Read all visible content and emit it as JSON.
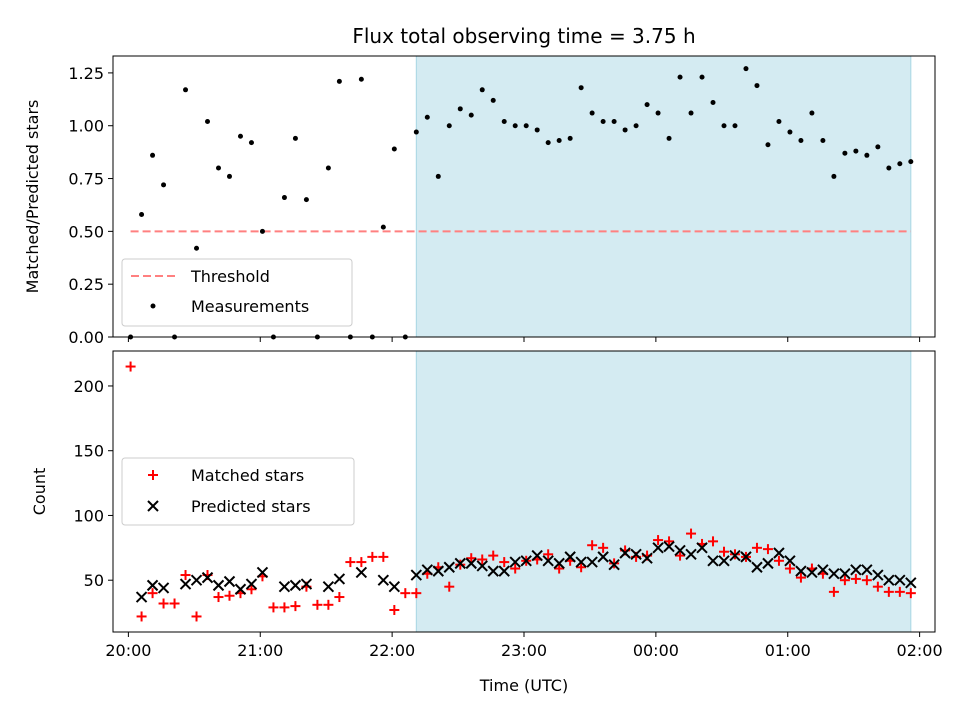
{
  "chart_data": [
    {
      "type": "scatter",
      "title": "Flux total observing time = 3.75 h",
      "ylabel": "Matched/Predicted stars",
      "xlabel": "",
      "ylim": [
        0,
        1.33
      ],
      "yticks": [
        0,
        0.25,
        0.5,
        0.75,
        1.0,
        1.25
      ],
      "ytick_labels": [
        "0.00",
        "0.25",
        "0.50",
        "0.75",
        "1.00",
        "1.25"
      ],
      "x_axis": "time",
      "xlim": [
        "19:53",
        "02:07"
      ],
      "xticks": [
        "20:00",
        "21:00",
        "22:00",
        "23:00",
        "00:00",
        "01:00",
        "02:00"
      ],
      "highlight_span": [
        "22:11",
        "01:56"
      ],
      "legend_position": "lower-left",
      "threshold": {
        "name": "Threshold",
        "value": 0.5,
        "x_range": [
          "20:01",
          "01:56"
        ],
        "color": "#ff8080",
        "style": "dashed"
      },
      "series": [
        {
          "name": "Measurements",
          "marker": "dot",
          "color": "#000000",
          "points": [
            [
              "20:01",
              0.0
            ],
            [
              "20:06",
              0.58
            ],
            [
              "20:11",
              0.86
            ],
            [
              "20:16",
              0.72
            ],
            [
              "20:21",
              0.0
            ],
            [
              "20:26",
              1.17
            ],
            [
              "20:31",
              0.42
            ],
            [
              "20:36",
              1.02
            ],
            [
              "20:41",
              0.8
            ],
            [
              "20:46",
              0.76
            ],
            [
              "20:51",
              0.95
            ],
            [
              "20:56",
              0.92
            ],
            [
              "21:01",
              0.5
            ],
            [
              "21:06",
              0.0
            ],
            [
              "21:11",
              0.66
            ],
            [
              "21:16",
              0.94
            ],
            [
              "21:21",
              0.65
            ],
            [
              "21:26",
              0.0
            ],
            [
              "21:31",
              0.8
            ],
            [
              "21:36",
              1.21
            ],
            [
              "21:41",
              0.0
            ],
            [
              "21:46",
              1.22
            ],
            [
              "21:51",
              0.0
            ],
            [
              "21:56",
              0.52
            ],
            [
              "22:01",
              0.89
            ],
            [
              "22:06",
              0.0
            ],
            [
              "22:11",
              0.97
            ],
            [
              "22:16",
              1.04
            ],
            [
              "22:21",
              0.76
            ],
            [
              "22:26",
              1.0
            ],
            [
              "22:31",
              1.08
            ],
            [
              "22:36",
              1.05
            ],
            [
              "22:41",
              1.17
            ],
            [
              "22:46",
              1.12
            ],
            [
              "22:51",
              1.02
            ],
            [
              "22:56",
              1.0
            ],
            [
              "23:01",
              1.0
            ],
            [
              "23:06",
              0.98
            ],
            [
              "23:11",
              0.92
            ],
            [
              "23:16",
              0.93
            ],
            [
              "23:21",
              0.94
            ],
            [
              "23:26",
              1.18
            ],
            [
              "23:31",
              1.06
            ],
            [
              "23:36",
              1.02
            ],
            [
              "23:41",
              1.02
            ],
            [
              "23:46",
              0.98
            ],
            [
              "23:51",
              1.0
            ],
            [
              "23:56",
              1.1
            ],
            [
              "00:01",
              1.06
            ],
            [
              "00:06",
              0.94
            ],
            [
              "00:11",
              1.23
            ],
            [
              "00:16",
              1.06
            ],
            [
              "00:21",
              1.23
            ],
            [
              "00:26",
              1.11
            ],
            [
              "00:31",
              1.0
            ],
            [
              "00:36",
              1.0
            ],
            [
              "00:41",
              1.27
            ],
            [
              "00:46",
              1.19
            ],
            [
              "00:51",
              0.91
            ],
            [
              "00:56",
              1.02
            ],
            [
              "01:01",
              0.97
            ],
            [
              "01:06",
              0.93
            ],
            [
              "01:11",
              1.06
            ],
            [
              "01:16",
              0.93
            ],
            [
              "01:21",
              0.76
            ],
            [
              "01:26",
              0.87
            ],
            [
              "01:31",
              0.88
            ],
            [
              "01:36",
              0.86
            ],
            [
              "01:41",
              0.9
            ],
            [
              "01:46",
              0.8
            ],
            [
              "01:51",
              0.82
            ],
            [
              "01:56",
              0.83
            ]
          ]
        }
      ]
    },
    {
      "type": "scatter",
      "title": "",
      "ylabel": "Count",
      "xlabel": "Time (UTC)",
      "ylim": [
        10,
        227
      ],
      "yticks": [
        50,
        100,
        150,
        200
      ],
      "ytick_labels": [
        "50",
        "100",
        "150",
        "200"
      ],
      "x_axis": "time",
      "xlim": [
        "19:53",
        "02:07"
      ],
      "xticks": [
        "20:00",
        "21:00",
        "22:00",
        "23:00",
        "00:00",
        "01:00",
        "02:00"
      ],
      "xtick_labels": [
        "20:00",
        "21:00",
        "22:00",
        "23:00",
        "00:00",
        "01:00",
        "02:00"
      ],
      "highlight_span": [
        "22:11",
        "01:56"
      ],
      "legend_position": "center-left",
      "series": [
        {
          "name": "Matched stars",
          "marker": "plus",
          "color": "#ff0000",
          "points": [
            [
              "20:01",
              215
            ],
            [
              "20:06",
              22
            ],
            [
              "20:11",
              40
            ],
            [
              "20:16",
              32
            ],
            [
              "20:21",
              32
            ],
            [
              "20:26",
              54
            ],
            [
              "20:31",
              22
            ],
            [
              "20:36",
              54
            ],
            [
              "20:41",
              37
            ],
            [
              "20:46",
              38
            ],
            [
              "20:51",
              40
            ],
            [
              "20:56",
              43
            ],
            [
              "21:01",
              53
            ],
            [
              "21:06",
              29
            ],
            [
              "21:11",
              29
            ],
            [
              "21:16",
              30
            ],
            [
              "21:21",
              45
            ],
            [
              "21:26",
              31
            ],
            [
              "21:31",
              31
            ],
            [
              "21:36",
              37
            ],
            [
              "21:41",
              64
            ],
            [
              "21:46",
              64
            ],
            [
              "21:51",
              68
            ],
            [
              "21:56",
              68
            ],
            [
              "22:01",
              27
            ],
            [
              "22:06",
              40
            ],
            [
              "22:11",
              40
            ],
            [
              "22:16",
              55
            ],
            [
              "22:21",
              60
            ],
            [
              "22:26",
              45
            ],
            [
              "22:31",
              62
            ],
            [
              "22:36",
              67
            ],
            [
              "22:41",
              66
            ],
            [
              "22:46",
              69
            ],
            [
              "22:51",
              64
            ],
            [
              "22:56",
              59
            ],
            [
              "23:01",
              65
            ],
            [
              "23:06",
              66
            ],
            [
              "23:11",
              70
            ],
            [
              "23:16",
              59
            ],
            [
              "23:21",
              65
            ],
            [
              "23:26",
              60
            ],
            [
              "23:31",
              77
            ],
            [
              "23:36",
              75
            ],
            [
              "23:41",
              63
            ],
            [
              "23:46",
              73
            ],
            [
              "23:51",
              68
            ],
            [
              "23:56",
              69
            ],
            [
              "00:01",
              81
            ],
            [
              "00:06",
              80
            ],
            [
              "00:11",
              69
            ],
            [
              "00:16",
              86
            ],
            [
              "00:21",
              78
            ],
            [
              "00:26",
              80
            ],
            [
              "00:31",
              72
            ],
            [
              "00:36",
              70
            ],
            [
              "00:41",
              68
            ],
            [
              "00:46",
              75
            ],
            [
              "00:51",
              74
            ],
            [
              "00:56",
              65
            ],
            [
              "01:01",
              59
            ],
            [
              "01:06",
              52
            ],
            [
              "01:11",
              59
            ],
            [
              "01:16",
              55
            ],
            [
              "01:21",
              41
            ],
            [
              "01:26",
              50
            ],
            [
              "01:31",
              51
            ],
            [
              "01:36",
              50
            ],
            [
              "01:41",
              45
            ],
            [
              "01:46",
              41
            ],
            [
              "01:51",
              41
            ],
            [
              "01:56",
              40
            ]
          ]
        },
        {
          "name": "Predicted stars",
          "marker": "x",
          "color": "#000000",
          "points": [
            [
              "20:06",
              37
            ],
            [
              "20:11",
              46
            ],
            [
              "20:16",
              44
            ],
            [
              "20:26",
              47
            ],
            [
              "20:31",
              50
            ],
            [
              "20:36",
              52
            ],
            [
              "20:41",
              46
            ],
            [
              "20:46",
              49
            ],
            [
              "20:51",
              43
            ],
            [
              "20:56",
              47
            ],
            [
              "21:01",
              56
            ],
            [
              "21:11",
              45
            ],
            [
              "21:16",
              46
            ],
            [
              "21:21",
              47
            ],
            [
              "21:31",
              45
            ],
            [
              "21:36",
              51
            ],
            [
              "21:46",
              56
            ],
            [
              "21:56",
              50
            ],
            [
              "22:01",
              45
            ],
            [
              "22:11",
              54
            ],
            [
              "22:16",
              58
            ],
            [
              "22:21",
              57
            ],
            [
              "22:26",
              60
            ],
            [
              "22:31",
              63
            ],
            [
              "22:36",
              63
            ],
            [
              "22:41",
              61
            ],
            [
              "22:46",
              57
            ],
            [
              "22:51",
              57
            ],
            [
              "22:56",
              64
            ],
            [
              "23:01",
              65
            ],
            [
              "23:06",
              69
            ],
            [
              "23:11",
              65
            ],
            [
              "23:16",
              63
            ],
            [
              "23:21",
              68
            ],
            [
              "23:26",
              64
            ],
            [
              "23:31",
              64
            ],
            [
              "23:36",
              68
            ],
            [
              "23:41",
              62
            ],
            [
              "23:46",
              71
            ],
            [
              "23:51",
              70
            ],
            [
              "23:56",
              67
            ],
            [
              "00:01",
              75
            ],
            [
              "00:06",
              76
            ],
            [
              "00:11",
              73
            ],
            [
              "00:16",
              70
            ],
            [
              "00:21",
              75
            ],
            [
              "00:26",
              65
            ],
            [
              "00:31",
              65
            ],
            [
              "00:36",
              69
            ],
            [
              "00:41",
              68
            ],
            [
              "00:46",
              60
            ],
            [
              "00:51",
              63
            ],
            [
              "00:56",
              71
            ],
            [
              "01:01",
              65
            ],
            [
              "01:06",
              57
            ],
            [
              "01:11",
              56
            ],
            [
              "01:16",
              58
            ],
            [
              "01:21",
              55
            ],
            [
              "01:26",
              55
            ],
            [
              "01:31",
              58
            ],
            [
              "01:36",
              58
            ],
            [
              "01:41",
              54
            ],
            [
              "01:46",
              50
            ],
            [
              "01:51",
              50
            ],
            [
              "01:56",
              48
            ]
          ]
        }
      ]
    }
  ],
  "colors": {
    "highlight": "#d4ebf2",
    "highlight_edge": "#a8d6e4",
    "axis": "#000000"
  }
}
